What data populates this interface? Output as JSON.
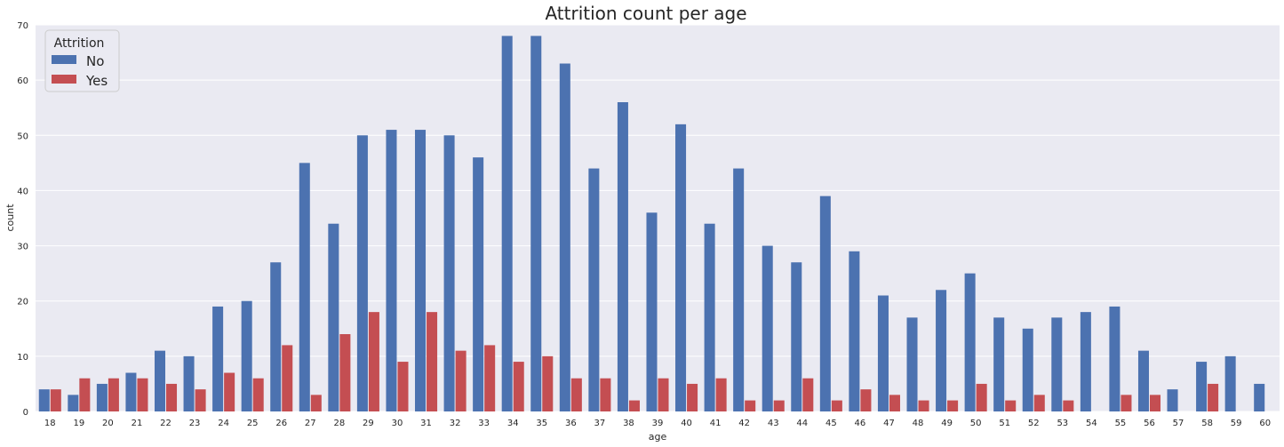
{
  "chart_data": {
    "type": "bar",
    "title": "Attrition count per age",
    "xlabel": "age",
    "ylabel": "count",
    "ylim": [
      0,
      70
    ],
    "yticks": [
      0,
      10,
      20,
      30,
      40,
      50,
      60,
      70
    ],
    "grid": true,
    "legend": {
      "title": "Attrition",
      "placement": "top-left"
    },
    "categories": [
      "18",
      "19",
      "20",
      "21",
      "22",
      "23",
      "24",
      "25",
      "26",
      "27",
      "28",
      "29",
      "30",
      "31",
      "32",
      "33",
      "34",
      "35",
      "36",
      "37",
      "38",
      "39",
      "40",
      "41",
      "42",
      "43",
      "44",
      "45",
      "46",
      "47",
      "48",
      "49",
      "50",
      "51",
      "52",
      "53",
      "54",
      "55",
      "56",
      "57",
      "58",
      "59",
      "60"
    ],
    "series": [
      {
        "name": "No",
        "color": "#4c72b0",
        "values": [
          4,
          3,
          5,
          7,
          11,
          10,
          19,
          20,
          27,
          45,
          34,
          50,
          51,
          51,
          50,
          46,
          68,
          68,
          63,
          44,
          56,
          36,
          52,
          34,
          44,
          30,
          27,
          39,
          29,
          21,
          17,
          22,
          25,
          17,
          15,
          17,
          18,
          19,
          11,
          4,
          9,
          10,
          5
        ]
      },
      {
        "name": "Yes",
        "color": "#c44e52",
        "values": [
          4,
          6,
          6,
          6,
          5,
          4,
          7,
          6,
          12,
          3,
          14,
          18,
          9,
          18,
          11,
          12,
          9,
          10,
          6,
          6,
          2,
          6,
          5,
          6,
          2,
          2,
          6,
          2,
          4,
          3,
          2,
          2,
          5,
          2,
          3,
          2,
          0,
          3,
          3,
          0,
          5,
          0,
          0
        ]
      }
    ],
    "background_color": "#eaeaf2",
    "grid_color": "#ffffff"
  }
}
